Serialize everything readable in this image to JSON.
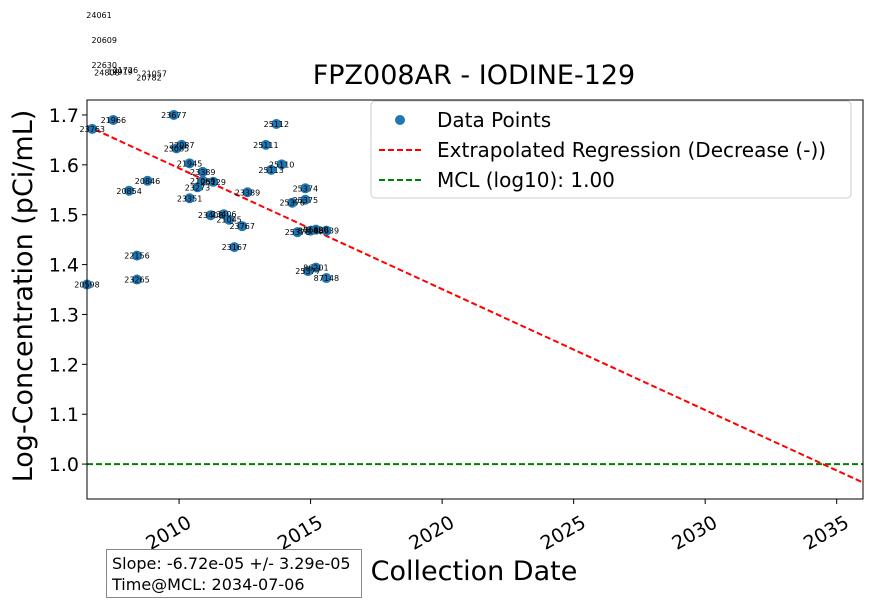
{
  "chart_data": {
    "type": "scatter",
    "title": "FPZ008AR - IODINE-129",
    "xlabel": "Collection Date",
    "ylabel": "Log-Concentration (pCi/mL)",
    "xlim": [
      2006.5,
      2036.0
    ],
    "ylim": [
      0.93,
      1.73
    ],
    "x_ticks": [
      2010,
      2015,
      2020,
      2025,
      2030,
      2035
    ],
    "y_ticks": [
      "1.0",
      "1.1",
      "1.2",
      "1.3",
      "1.4",
      "1.5",
      "1.6",
      "1.7"
    ],
    "legend": {
      "placement": "upper-right",
      "entries": [
        {
          "label": "Data Points",
          "color": "#1f77b4",
          "marker": "circle"
        },
        {
          "label": "Extrapolated Regression (Decrease (-))",
          "color": "#ff0000",
          "line": "dashed"
        },
        {
          "label": "MCL (log10): 1.00",
          "color": "#008000",
          "line": "dashed"
        }
      ]
    },
    "points": [
      {
        "x": 2006.7,
        "y": 1.672,
        "label": "23763"
      },
      {
        "x": 2007.5,
        "y": 1.69,
        "label": "21966"
      },
      {
        "x": 2006.5,
        "y": 1.36,
        "label": "20598"
      },
      {
        "x": 2008.1,
        "y": 1.548,
        "label": "20854"
      },
      {
        "x": 2008.8,
        "y": 1.568,
        "label": "20846"
      },
      {
        "x": 2008.4,
        "y": 1.418,
        "label": "22156"
      },
      {
        "x": 2008.4,
        "y": 1.37,
        "label": "23265"
      },
      {
        "x": 2009.8,
        "y": 1.7,
        "label": "23677"
      },
      {
        "x": 2010.1,
        "y": 1.64,
        "label": "22087"
      },
      {
        "x": 2009.9,
        "y": 1.633,
        "label": "23085"
      },
      {
        "x": 2010.4,
        "y": 1.603,
        "label": "21945"
      },
      {
        "x": 2010.9,
        "y": 1.586,
        "label": "23389"
      },
      {
        "x": 2010.9,
        "y": 1.568,
        "label": "21069"
      },
      {
        "x": 2011.3,
        "y": 1.566,
        "label": "25129"
      },
      {
        "x": 2010.7,
        "y": 1.555,
        "label": "23273"
      },
      {
        "x": 2010.4,
        "y": 1.533,
        "label": "23351"
      },
      {
        "x": 2011.2,
        "y": 1.499,
        "label": "23408"
      },
      {
        "x": 2011.7,
        "y": 1.501,
        "label": "23406"
      },
      {
        "x": 2011.9,
        "y": 1.49,
        "label": "21045"
      },
      {
        "x": 2012.4,
        "y": 1.477,
        "label": "23767"
      },
      {
        "x": 2012.6,
        "y": 1.545,
        "label": "23389"
      },
      {
        "x": 2012.1,
        "y": 1.435,
        "label": "23167"
      },
      {
        "x": 2013.7,
        "y": 1.682,
        "label": "25112"
      },
      {
        "x": 2013.3,
        "y": 1.64,
        "label": "25111"
      },
      {
        "x": 2013.9,
        "y": 1.601,
        "label": "25110"
      },
      {
        "x": 2013.5,
        "y": 1.59,
        "label": "25113"
      },
      {
        "x": 2014.8,
        "y": 1.553,
        "label": "25374"
      },
      {
        "x": 2014.8,
        "y": 1.53,
        "label": "25375"
      },
      {
        "x": 2014.3,
        "y": 1.524,
        "label": "25376"
      },
      {
        "x": 2014.5,
        "y": 1.465,
        "label": "25378"
      },
      {
        "x": 2015.0,
        "y": 1.468,
        "label": "87148"
      },
      {
        "x": 2015.2,
        "y": 1.47,
        "label": "86620"
      },
      {
        "x": 2015.6,
        "y": 1.468,
        "label": "86639"
      },
      {
        "x": 2015.2,
        "y": 1.394,
        "label": "86201"
      },
      {
        "x": 2014.9,
        "y": 1.387,
        "label": "25377"
      },
      {
        "x": 2015.6,
        "y": 1.373,
        "label": "87148"
      }
    ],
    "overlap_labels": [
      {
        "x": 2006.5,
        "y": 1.9,
        "label": "24061"
      },
      {
        "x": 2006.7,
        "y": 1.85,
        "label": "20609"
      },
      {
        "x": 2006.7,
        "y": 1.8,
        "label": "22630"
      },
      {
        "x": 2007.5,
        "y": 1.79,
        "label": "21726"
      },
      {
        "x": 2006.8,
        "y": 1.785,
        "label": "24808"
      },
      {
        "x": 2007.3,
        "y": 1.787,
        "label": "19919"
      },
      {
        "x": 2008.6,
        "y": 1.783,
        "label": "21057"
      },
      {
        "x": 2008.4,
        "y": 1.775,
        "label": "20782"
      }
    ],
    "regression": {
      "x": [
        2006.5,
        2036.0
      ],
      "y": [
        1.678,
        0.963
      ],
      "color": "#ff0000"
    },
    "mcl": {
      "y": 1.0,
      "color": "#008000"
    },
    "marker_color": "#1f77b4",
    "stats": {
      "slope": "Slope: -6.72e-05 +/- 3.29e-05",
      "time_at_mcl": "Time@MCL: 2034-07-06"
    }
  }
}
